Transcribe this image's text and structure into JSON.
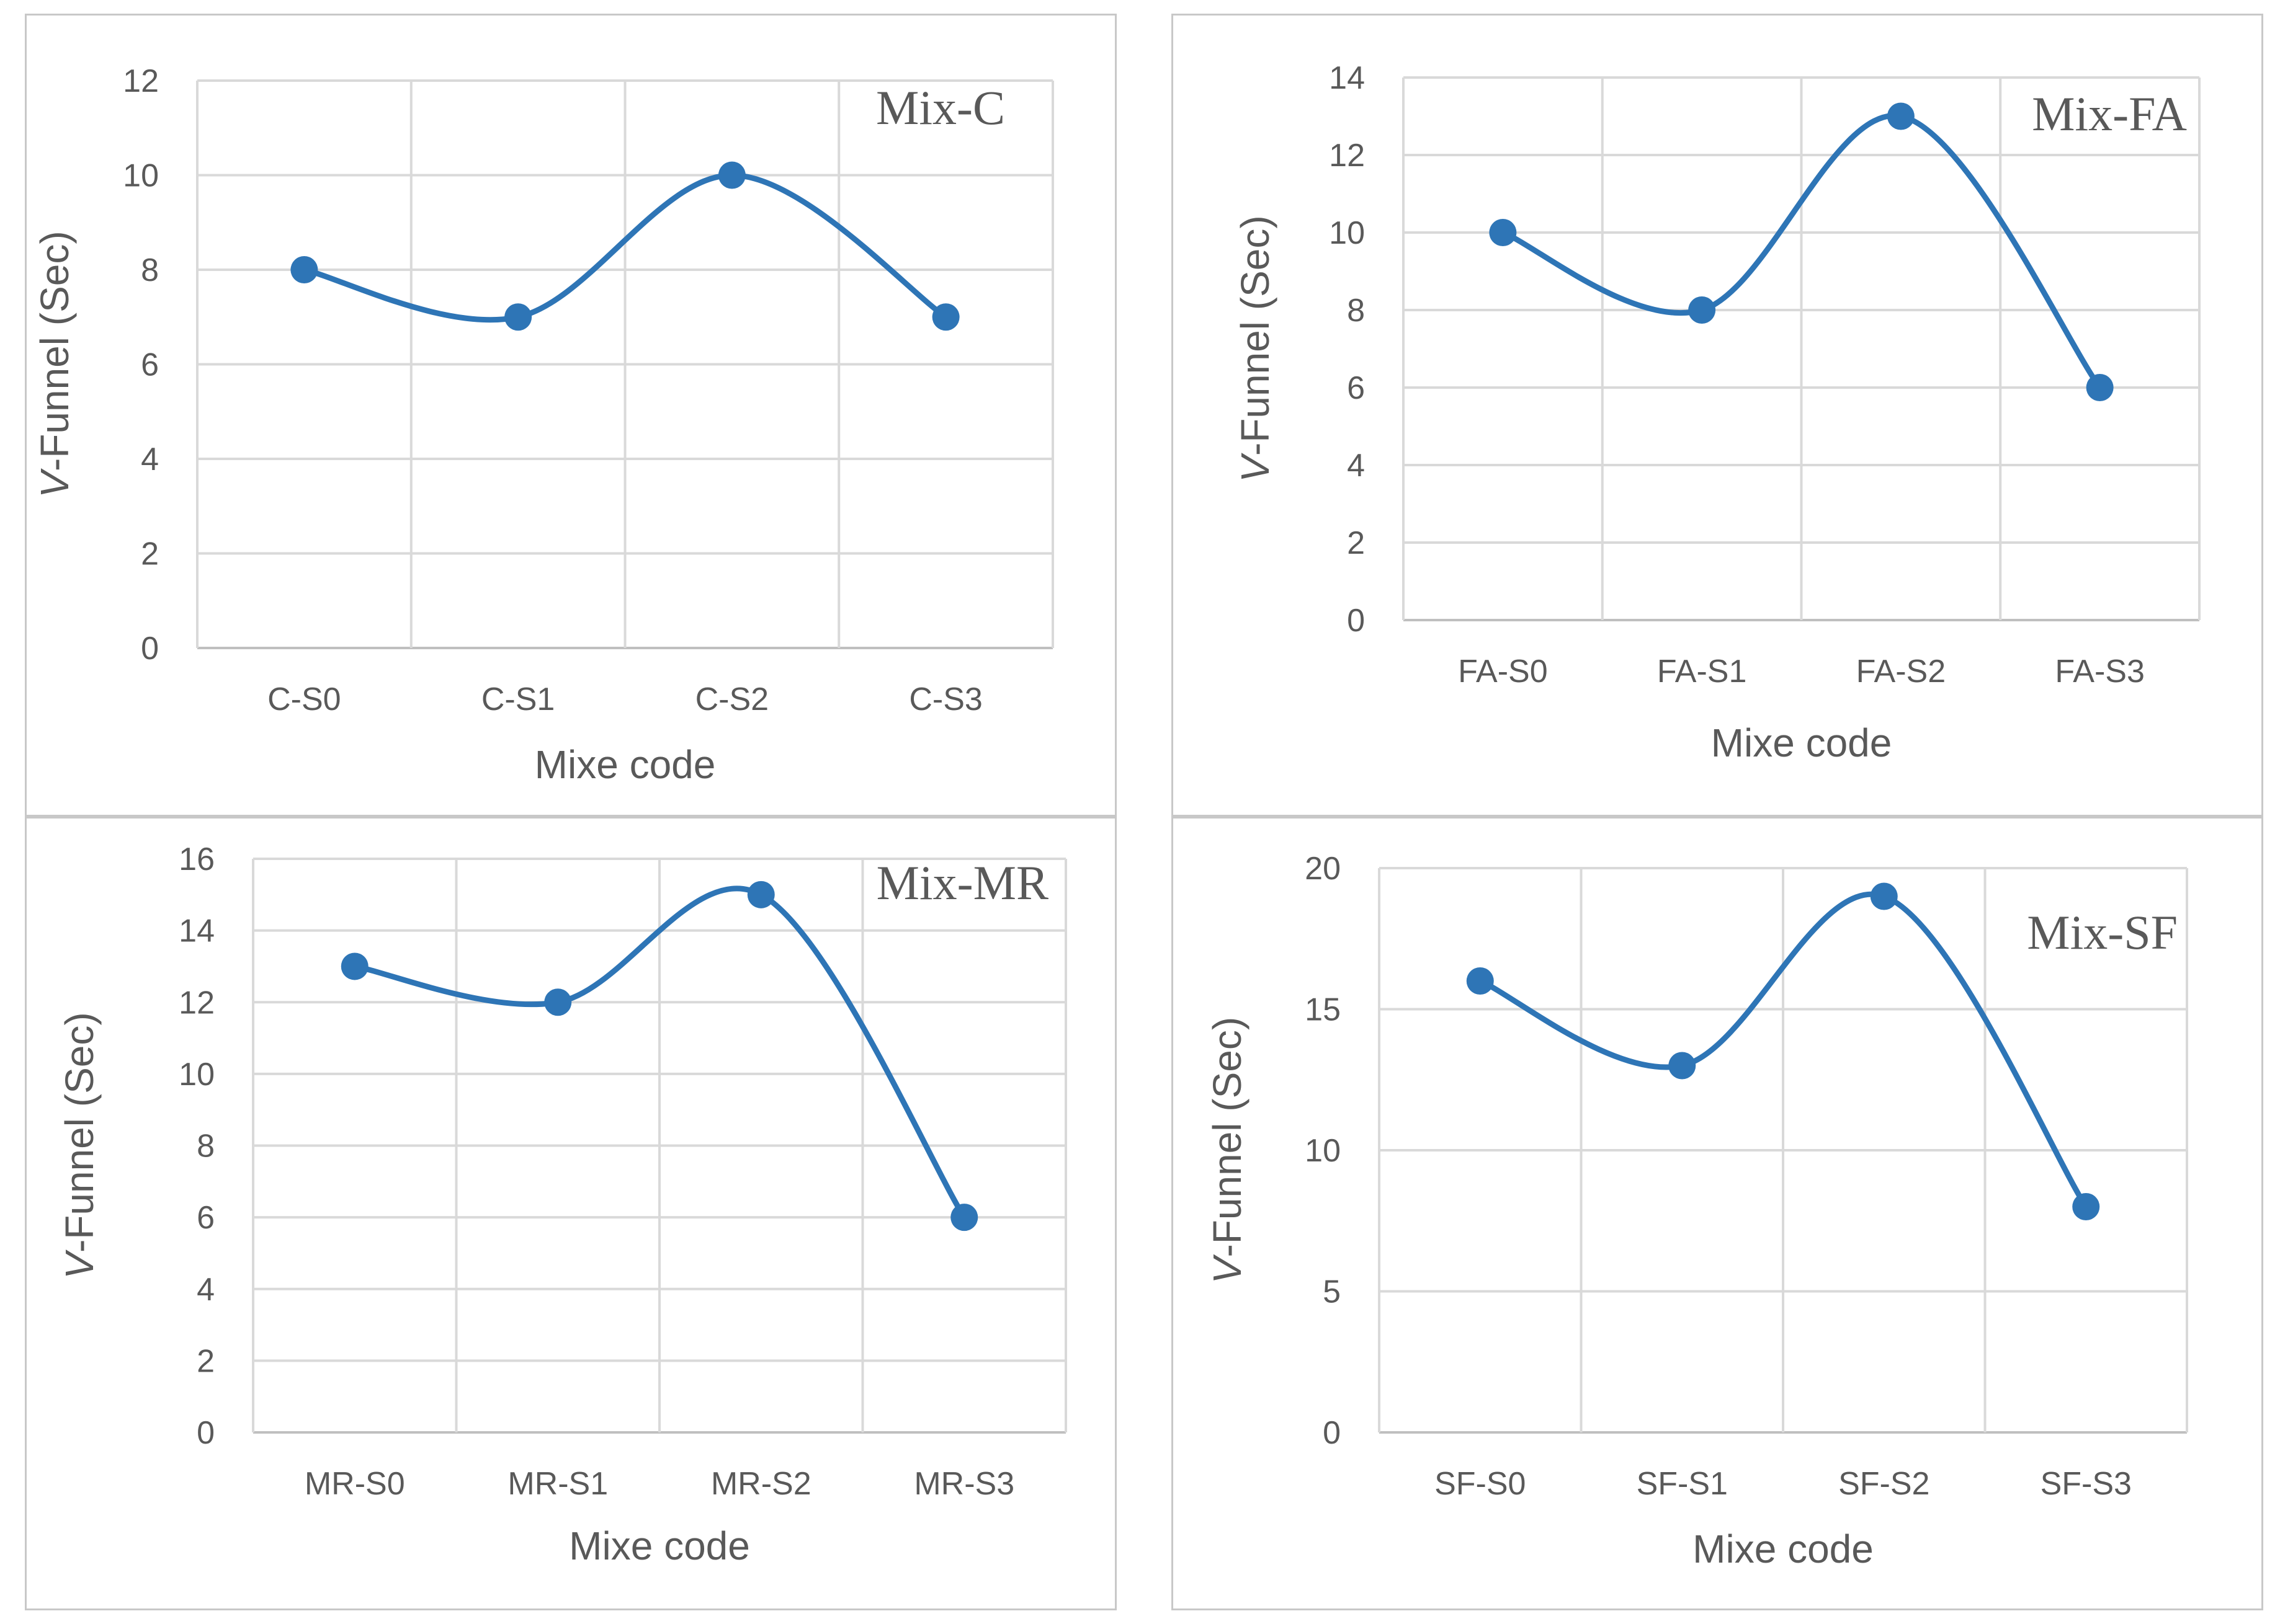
{
  "chart_data": [
    {
      "type": "line",
      "title": "Mix-C",
      "xlabel": "Mixe code",
      "ylabel_prefix": "V",
      "ylabel_rest": "-Funnel (Sec)",
      "categories": [
        "C-S0",
        "C-S1",
        "C-S2",
        "C-S3"
      ],
      "values": [
        8,
        7,
        10,
        7
      ],
      "ylim": [
        0,
        12
      ],
      "yticks": [
        0,
        2,
        4,
        6,
        8,
        10,
        12
      ],
      "grid": true,
      "color": "#2e75b6"
    },
    {
      "type": "line",
      "title": "Mix-FA",
      "xlabel": "Mixe code",
      "ylabel_prefix": "V",
      "ylabel_rest": "-Funnel (Sec)",
      "categories": [
        "FA-S0",
        "FA-S1",
        "FA-S2",
        "FA-S3"
      ],
      "values": [
        10,
        8,
        13,
        6
      ],
      "ylim": [
        0,
        14
      ],
      "yticks": [
        0,
        2,
        4,
        6,
        8,
        10,
        12,
        14
      ],
      "grid": true,
      "color": "#2e75b6"
    },
    {
      "type": "line",
      "title": "Mix-MR",
      "xlabel": "Mixe code",
      "ylabel_prefix": "V",
      "ylabel_rest": "-Funnel (Sec)",
      "categories": [
        "MR-S0",
        "MR-S1",
        "MR-S2",
        "MR-S3"
      ],
      "values": [
        13,
        12,
        15,
        6
      ],
      "ylim": [
        0,
        16
      ],
      "yticks": [
        0,
        2,
        4,
        6,
        8,
        10,
        12,
        14,
        16
      ],
      "grid": true,
      "color": "#2e75b6"
    },
    {
      "type": "line",
      "title": "Mix-SF",
      "xlabel": "Mixe code",
      "ylabel_prefix": "V",
      "ylabel_rest": "-Funnel (Sec)",
      "categories": [
        "SF-S0",
        "SF-S1",
        "SF-S2",
        "SF-S3"
      ],
      "values": [
        16,
        13,
        19,
        8
      ],
      "ylim": [
        0,
        20
      ],
      "yticks": [
        0,
        5,
        10,
        15,
        20
      ],
      "grid": true,
      "color": "#2e75b6"
    }
  ]
}
